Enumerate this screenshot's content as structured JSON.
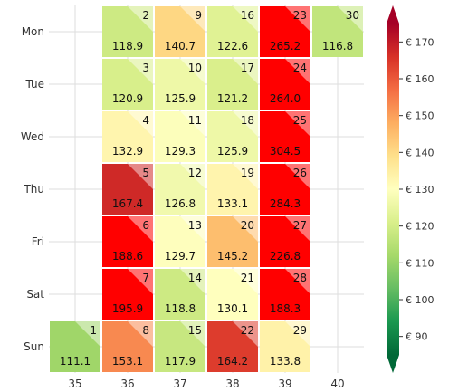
{
  "chart_data": {
    "type": "heatmap",
    "title": "",
    "xlabel": "",
    "ylabel": "",
    "x": [
      "35",
      "36",
      "37",
      "38",
      "39",
      "40"
    ],
    "y": [
      "Mon",
      "Tue",
      "Wed",
      "Thu",
      "Fri",
      "Sat",
      "Sun"
    ],
    "cells": [
      {
        "week": "36",
        "day": "Mon",
        "date": 2,
        "value": 118.9
      },
      {
        "week": "37",
        "day": "Mon",
        "date": 9,
        "value": 140.7
      },
      {
        "week": "38",
        "day": "Mon",
        "date": 16,
        "value": 122.6
      },
      {
        "week": "39",
        "day": "Mon",
        "date": 23,
        "value": 265.2
      },
      {
        "week": "40",
        "day": "Mon",
        "date": 30,
        "value": 116.8
      },
      {
        "week": "36",
        "day": "Tue",
        "date": 3,
        "value": 120.9
      },
      {
        "week": "37",
        "day": "Tue",
        "date": 10,
        "value": 125.9
      },
      {
        "week": "38",
        "day": "Tue",
        "date": 17,
        "value": 121.2
      },
      {
        "week": "39",
        "day": "Tue",
        "date": 24,
        "value": 264.0
      },
      {
        "week": "36",
        "day": "Wed",
        "date": 4,
        "value": 132.9
      },
      {
        "week": "37",
        "day": "Wed",
        "date": 11,
        "value": 129.3
      },
      {
        "week": "38",
        "day": "Wed",
        "date": 18,
        "value": 125.9
      },
      {
        "week": "39",
        "day": "Wed",
        "date": 25,
        "value": 304.5
      },
      {
        "week": "36",
        "day": "Thu",
        "date": 5,
        "value": 167.4
      },
      {
        "week": "37",
        "day": "Thu",
        "date": 12,
        "value": 126.8
      },
      {
        "week": "38",
        "day": "Thu",
        "date": 19,
        "value": 133.1
      },
      {
        "week": "39",
        "day": "Thu",
        "date": 26,
        "value": 284.3
      },
      {
        "week": "36",
        "day": "Fri",
        "date": 6,
        "value": 188.6
      },
      {
        "week": "37",
        "day": "Fri",
        "date": 13,
        "value": 129.7
      },
      {
        "week": "38",
        "day": "Fri",
        "date": 20,
        "value": 145.2
      },
      {
        "week": "39",
        "day": "Fri",
        "date": 27,
        "value": 226.8
      },
      {
        "week": "36",
        "day": "Sat",
        "date": 7,
        "value": 195.9
      },
      {
        "week": "37",
        "day": "Sat",
        "date": 14,
        "value": 118.8
      },
      {
        "week": "38",
        "day": "Sat",
        "date": 21,
        "value": 130.1
      },
      {
        "week": "39",
        "day": "Sat",
        "date": 28,
        "value": 188.3
      },
      {
        "week": "35",
        "day": "Sun",
        "date": 1,
        "value": 111.1
      },
      {
        "week": "36",
        "day": "Sun",
        "date": 8,
        "value": 153.1
      },
      {
        "week": "37",
        "day": "Sun",
        "date": 15,
        "value": 117.9
      },
      {
        "week": "38",
        "day": "Sun",
        "date": 22,
        "value": 164.2
      },
      {
        "week": "39",
        "day": "Sun",
        "date": 29,
        "value": 133.8
      }
    ],
    "colorbar": {
      "min": 85,
      "max": 175,
      "ticks": [
        90,
        100,
        110,
        120,
        130,
        140,
        150,
        160,
        170
      ],
      "tick_labels": [
        "€ 90",
        "€ 100",
        "€ 110",
        "€ 120",
        "€ 130",
        "€ 140",
        "€ 150",
        "€ 160",
        "€ 170"
      ],
      "extend": "both",
      "colormap": "RdYlGn reversed",
      "low_color": "#006837",
      "high_color": "#a50026"
    },
    "grid": true
  }
}
